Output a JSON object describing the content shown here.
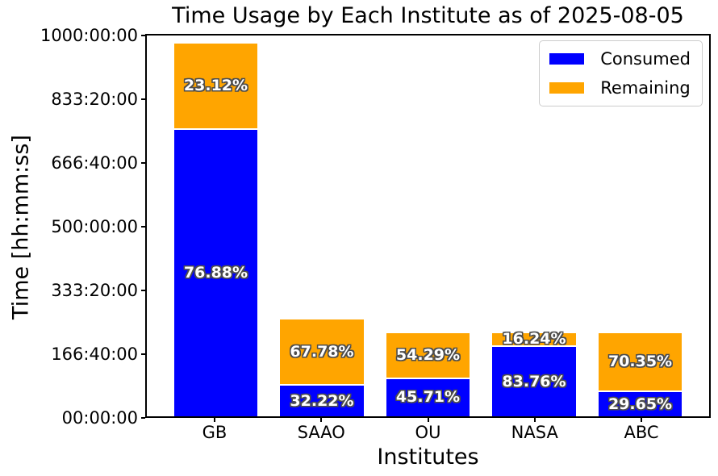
{
  "chart_data": {
    "type": "stacked_bar",
    "title": "Time Usage by Each Institute as of 2025-08-05",
    "xlabel": "Institutes",
    "ylabel": "Time [hh:mm:ss]",
    "categories": [
      "GB",
      "SAAO",
      "OU",
      "NASA",
      "ABC"
    ],
    "series": [
      {
        "name": "Consumed",
        "color": "#0000ff",
        "values_hours": [
          753.4,
          82.5,
          100.6,
          184.3,
          65.2
        ],
        "percent_labels": [
          "76.88%",
          "32.22%",
          "45.71%",
          "83.76%",
          "29.65%"
        ]
      },
      {
        "name": "Remaining",
        "color": "#ffa500",
        "values_hours": [
          226.6,
          173.5,
          119.4,
          35.7,
          154.8
        ],
        "percent_labels": [
          "23.12%",
          "67.78%",
          "54.29%",
          "16.24%",
          "70.35%"
        ]
      }
    ],
    "totals_hours": [
      980,
      256,
      220,
      220,
      220
    ],
    "y_axis": {
      "lim_hours": [
        0,
        1000
      ],
      "tick_labels": [
        "00:00:00",
        "166:40:00",
        "333:20:00",
        "500:00:00",
        "666:40:00",
        "833:20:00",
        "1000:00:00"
      ]
    },
    "legend": {
      "position": "upper-right",
      "entries": [
        "Consumed",
        "Remaining"
      ]
    },
    "colors": {
      "consumed": "#0000ff",
      "remaining": "#ffa500",
      "percent_label_text": "#ffffff",
      "percent_label_outline": "#4d4d4d",
      "axis": "#000000"
    }
  }
}
